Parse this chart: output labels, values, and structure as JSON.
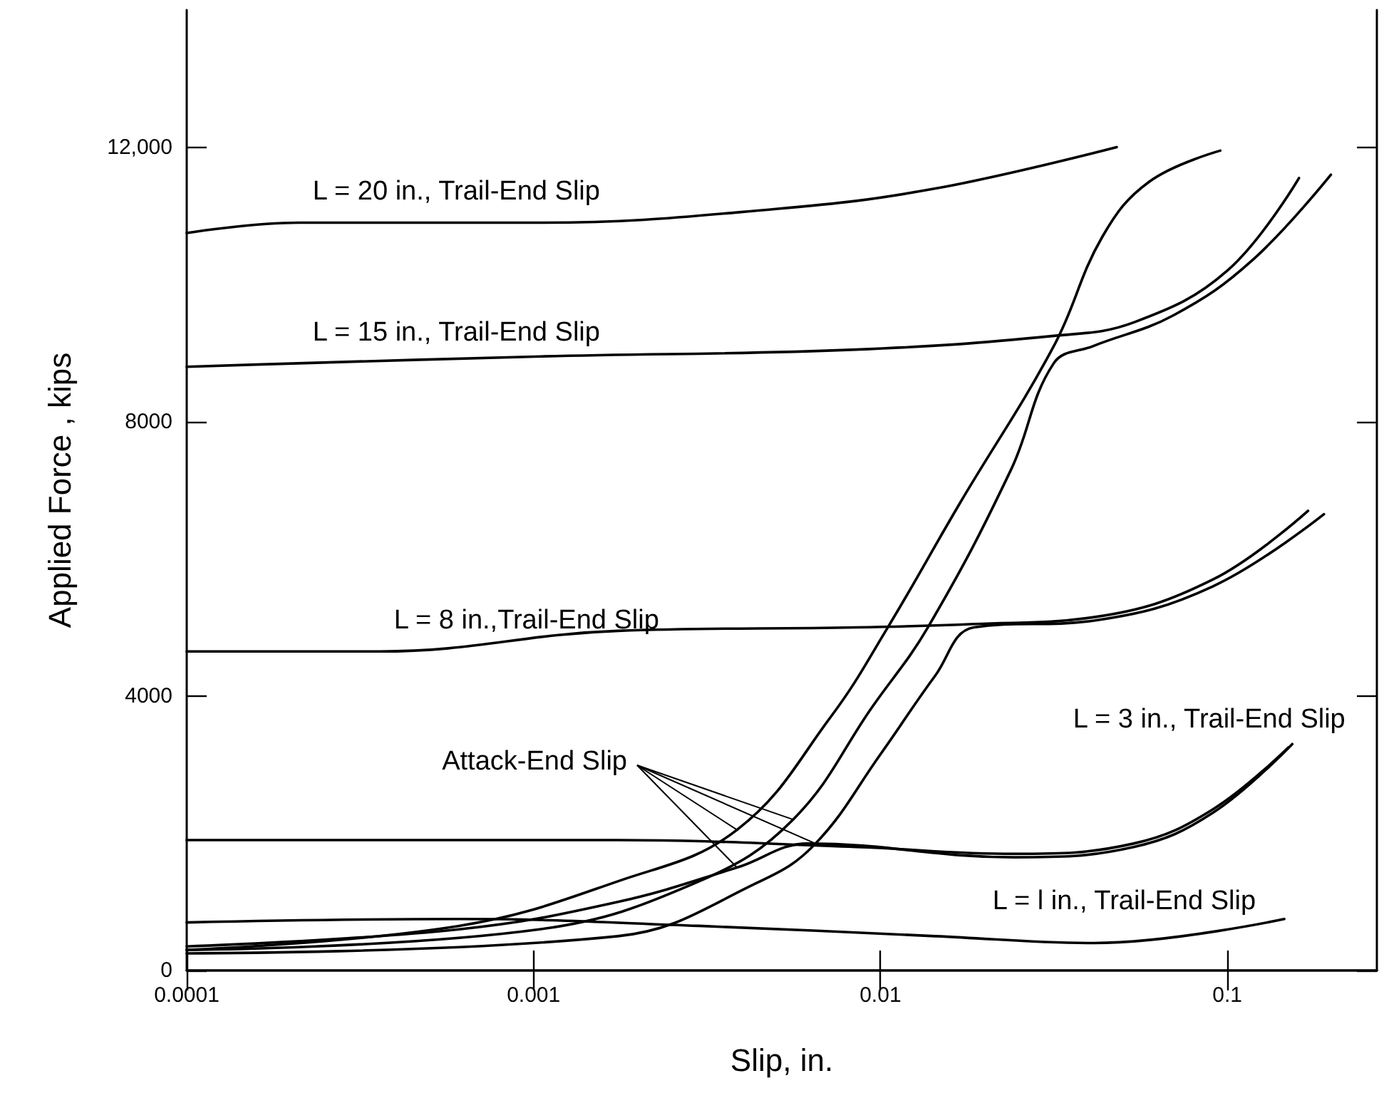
{
  "chart_data": {
    "type": "line",
    "xlabel": "Slip, in.",
    "ylabel": "Applied Force , kips",
    "log": "x",
    "marker": "none",
    "line_style": "solid",
    "xlim": [
      0.0001,
      0.27
    ],
    "ylim": [
      0,
      14000
    ],
    "xticks": [
      0.0001,
      0.001,
      0.01,
      0.1
    ],
    "yticks": [
      0,
      4000,
      8000,
      {
        "value": 12000,
        "label": "12,000"
      }
    ],
    "annotations": [
      {
        "text": "Attack-End Slip",
        "x": 0.00386,
        "y": 2050
      }
    ],
    "series": [
      {
        "name": "L = 20 in., Trail-End Slip",
        "color": "#000000",
        "x": [
          0.0001,
          0.00021,
          0.00105,
          0.005,
          0.0145,
          0.048
        ],
        "values": [
          10750,
          10900,
          10900,
          11100,
          11400,
          12000
        ]
      },
      {
        "name": "L = 15 in., Trail-End Slip",
        "color": "#000000",
        "x": [
          0.0001,
          0.00021,
          0.00105,
          0.0085,
          0.0316,
          0.054,
          0.1,
          0.161
        ],
        "values": [
          8800,
          8850,
          8950,
          9050,
          9250,
          9450,
          10200,
          11550
        ]
      },
      {
        "name": "L = 8 in.,Trail-End Slip",
        "color": "#000000",
        "x": [
          0.0001,
          0.00036,
          0.00175,
          0.0085,
          0.0186,
          0.0413,
          0.091,
          0.171
        ],
        "values": [
          4650,
          4650,
          4950,
          5000,
          5050,
          5150,
          5700,
          6700
        ]
      },
      {
        "name": "L = 3 in., Trail-End Slip",
        "color": "#000000",
        "x": [
          0.0001,
          0.00175,
          0.0085,
          0.0243,
          0.0537,
          0.091,
          0.15
        ],
        "values": [
          1900,
          1900,
          1800,
          1700,
          1850,
          2350,
          3250
        ]
      },
      {
        "name": "L = l in., Trail-End Slip",
        "color": "#000000",
        "x": [
          0.0001,
          0.00061,
          0.003,
          0.0144,
          0.0413,
          0.146
        ],
        "values": [
          700,
          750,
          650,
          500,
          400,
          750
        ]
      },
      {
        "color": "#000000",
        "x": [
          0.0001,
          0.00061,
          0.00175,
          0.00386,
          0.0072,
          0.0105,
          0.0169,
          0.0316,
          0.0437,
          0.0597,
          0.0955
        ],
        "values": [
          300,
          650,
          1300,
          2050,
          3700,
          5000,
          6800,
          9100,
          10700,
          11500,
          11950
        ]
      },
      {
        "color": "#000000",
        "x": [
          0.0001,
          0.00104,
          0.003,
          0.0056,
          0.0095,
          0.0137,
          0.0238,
          0.0316,
          0.041,
          0.07,
          0.118,
          0.199
        ],
        "values": [
          300,
          600,
          1300,
          2200,
          3850,
          5000,
          7300,
          8850,
          9100,
          9550,
          10350,
          11600
        ]
      },
      {
        "color": "#000000",
        "x": [
          0.0001,
          0.00175,
          0.0045,
          0.0065,
          0.01,
          0.0144,
          0.0186,
          0.0413,
          0.091,
          0.19
        ],
        "values": [
          250,
          500,
          1300,
          1850,
          3150,
          4300,
          5000,
          5100,
          5600,
          6650
        ]
      },
      {
        "color": "#000000",
        "x": [
          0.0001,
          0.00061,
          0.00175,
          0.00386,
          0.0062,
          0.0243,
          0.0537,
          0.091,
          0.154
        ],
        "values": [
          350,
          600,
          1000,
          1500,
          1850,
          1650,
          1800,
          2300,
          3300
        ]
      }
    ]
  }
}
